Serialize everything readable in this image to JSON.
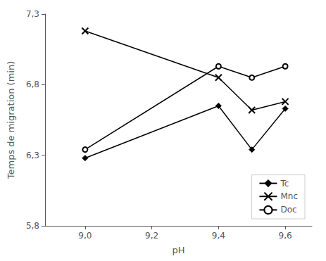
{
  "chart_data": {
    "type": "line",
    "xlabel": "pH",
    "ylabel": "Temps de migration (min)",
    "x": [
      9.0,
      9.4,
      9.5,
      9.6
    ],
    "series": [
      {
        "name": "Tc",
        "color": "#000000",
        "marker": "diamond",
        "values": [
          6.28,
          6.65,
          6.34,
          6.63
        ]
      },
      {
        "name": "Mnc",
        "color": "#000000",
        "marker": "x",
        "values": [
          7.18,
          6.85,
          6.62,
          6.68
        ]
      },
      {
        "name": "Doc",
        "color": "#000000",
        "marker": "open_circle",
        "values": [
          6.34,
          6.93,
          6.85,
          6.93
        ]
      }
    ],
    "xlim": [
      8.88,
      9.68
    ],
    "ylim": [
      5.8,
      7.3
    ],
    "xticks": [
      {
        "value": 9.0,
        "label": "9,0"
      },
      {
        "value": 9.2,
        "label": "9,2"
      },
      {
        "value": 9.4,
        "label": "9,4"
      },
      {
        "value": 9.6,
        "label": "9,6"
      }
    ],
    "yticks": [
      {
        "value": 5.8,
        "label": "5,8"
      },
      {
        "value": 6.3,
        "label": "6,3"
      },
      {
        "value": 6.8,
        "label": "6,8"
      },
      {
        "value": 7.3,
        "label": "7,3"
      }
    ],
    "grid": false,
    "legend": "lower right"
  }
}
